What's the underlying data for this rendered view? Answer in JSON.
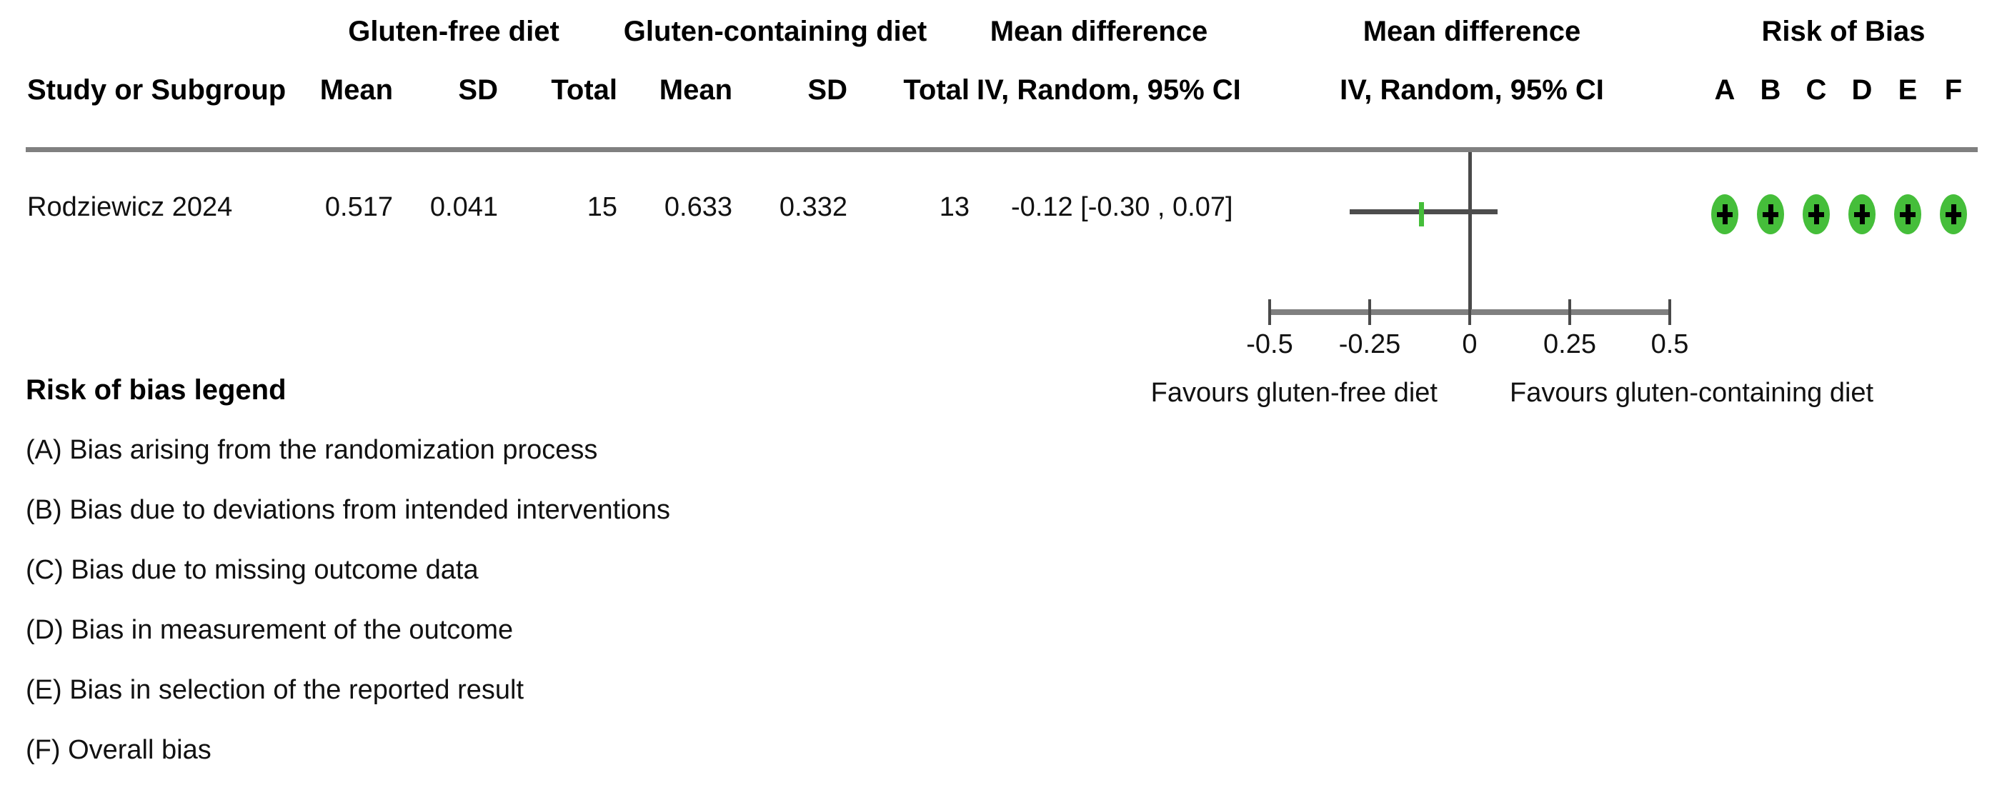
{
  "table": {
    "group_headers": {
      "group1": "Gluten-free diet",
      "group2": "Gluten-containing diet",
      "md_text": "Mean difference",
      "md_plot": "Mean difference",
      "rob": "Risk of Bias"
    },
    "columns": {
      "study": "Study or Subgroup",
      "mean": "Mean",
      "sd": "SD",
      "total": "Total",
      "ci": "IV, Random, 95% CI",
      "rob_letters": [
        "A",
        "B",
        "C",
        "D",
        "E",
        "F"
      ]
    }
  },
  "chart_data": {
    "type": "forest_plot",
    "effect_measure": "Mean difference",
    "method": "IV, Random, 95% CI",
    "axis": {
      "min": -0.5,
      "max": 0.5,
      "ticks": [
        -0.5,
        -0.25,
        0,
        0.25,
        0.5
      ],
      "tick_labels": [
        "-0.5",
        "-0.25",
        "0",
        "0.25",
        "0.5"
      ],
      "left_label": "Favours gluten-free diet",
      "right_label": "Favours gluten-containing diet"
    },
    "studies": [
      {
        "name": "Rodziewicz 2024",
        "group1": {
          "name": "Gluten-free diet",
          "mean": "0.517",
          "sd": "0.041",
          "total": "15"
        },
        "group2": {
          "name": "Gluten-containing diet",
          "mean": "0.633",
          "sd": "0.332",
          "total": "13"
        },
        "estimate": -0.12,
        "ci_lower": -0.3,
        "ci_upper": 0.07,
        "ci_display": "-0.12 [-0.30 , 0.07]",
        "risk_of_bias": [
          "low",
          "low",
          "low",
          "low",
          "low",
          "low"
        ]
      }
    ]
  },
  "legend": {
    "title": "Risk of bias legend",
    "items": [
      "(A) Bias arising from the randomization process",
      "(B) Bias due to deviations from intended interventions",
      "(C) Bias due to missing outcome data",
      "(D) Bias in measurement of the outcome",
      "(E) Bias in selection of the reported result",
      "(F) Overall bias"
    ]
  },
  "colors": {
    "low_risk_green": "#45be3a",
    "axis_gray": "#808080",
    "line_gray": "#4d4d4d",
    "text": "#000000"
  }
}
